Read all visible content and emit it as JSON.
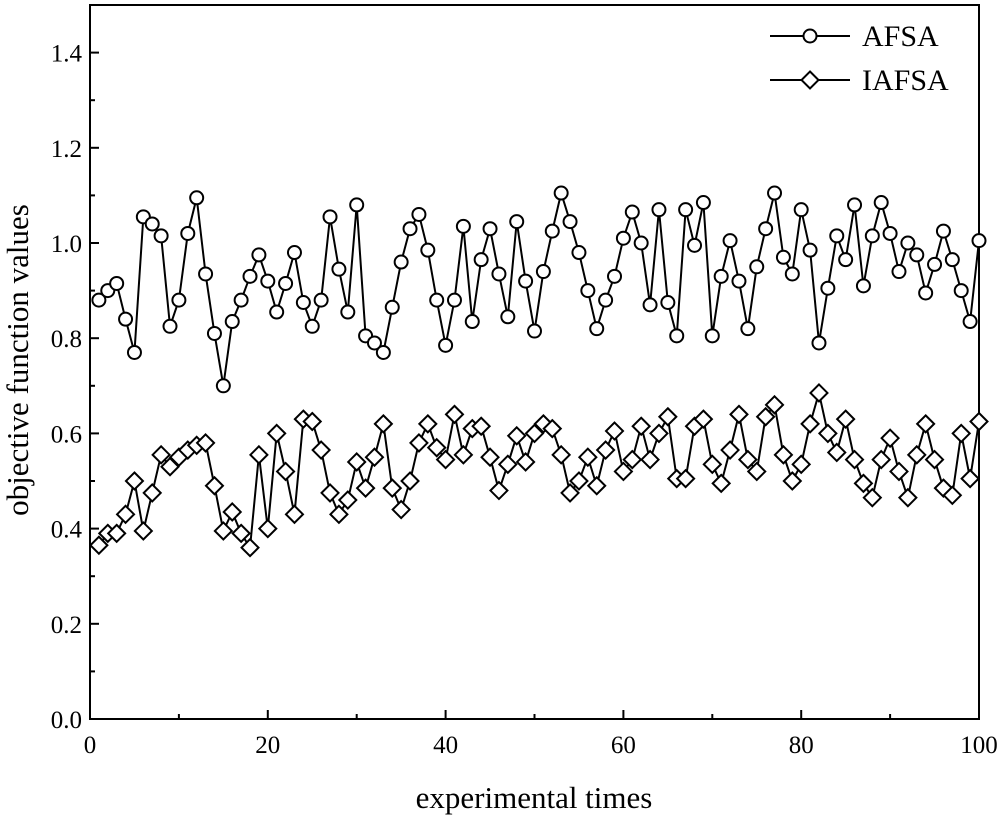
{
  "chart_data": {
    "type": "line",
    "title": "",
    "xlabel": "experimental times",
    "ylabel": "objective function values",
    "xlim": [
      0,
      100
    ],
    "ylim": [
      0,
      1.5
    ],
    "xticks": [
      0,
      20,
      40,
      60,
      80,
      100
    ],
    "xtick_labels": [
      "0",
      "20",
      "40",
      "60",
      "80",
      "100"
    ],
    "yticks": [
      0,
      0.2,
      0.4,
      0.6,
      0.8,
      1.0,
      1.2,
      1.4
    ],
    "ytick_labels": [
      "0.0",
      "0.2",
      "0.4",
      "0.6",
      "0.8",
      "1.0",
      "1.2",
      "1.4"
    ],
    "grid": false,
    "legend_position": "top-right",
    "x": [
      1,
      2,
      3,
      4,
      5,
      6,
      7,
      8,
      9,
      10,
      11,
      12,
      13,
      14,
      15,
      16,
      17,
      18,
      19,
      20,
      21,
      22,
      23,
      24,
      25,
      26,
      27,
      28,
      29,
      30,
      31,
      32,
      33,
      34,
      35,
      36,
      37,
      38,
      39,
      40,
      41,
      42,
      43,
      44,
      45,
      46,
      47,
      48,
      49,
      50,
      51,
      52,
      53,
      54,
      55,
      56,
      57,
      58,
      59,
      60,
      61,
      62,
      63,
      64,
      65,
      66,
      67,
      68,
      69,
      70,
      71,
      72,
      73,
      74,
      75,
      76,
      77,
      78,
      79,
      80,
      81,
      82,
      83,
      84,
      85,
      86,
      87,
      88,
      89,
      90,
      91,
      92,
      93,
      94,
      95,
      96,
      97,
      98,
      99,
      100
    ],
    "series": [
      {
        "name": "AFSA",
        "marker": "circle",
        "values": [
          0.88,
          0.9,
          0.915,
          0.84,
          0.77,
          1.055,
          1.04,
          1.015,
          0.825,
          0.88,
          1.02,
          1.095,
          0.935,
          0.81,
          0.7,
          0.835,
          0.88,
          0.93,
          0.975,
          0.92,
          0.855,
          0.915,
          0.98,
          0.875,
          0.825,
          0.88,
          1.055,
          0.945,
          0.855,
          1.08,
          0.805,
          0.79,
          0.77,
          0.865,
          0.96,
          1.03,
          1.06,
          0.985,
          0.88,
          0.785,
          0.88,
          1.035,
          0.835,
          0.965,
          1.03,
          0.935,
          0.845,
          1.045,
          0.92,
          0.815,
          0.94,
          1.025,
          1.105,
          1.045,
          0.98,
          0.9,
          0.82,
          0.88,
          0.93,
          1.01,
          1.065,
          1.0,
          0.87,
          1.07,
          0.875,
          0.805,
          1.07,
          0.995,
          1.085,
          0.805,
          0.93,
          1.005,
          0.92,
          0.82,
          0.95,
          1.03,
          1.105,
          0.97,
          0.935,
          1.07,
          0.985,
          0.79,
          0.905,
          1.015,
          0.965,
          1.08,
          0.91,
          1.015,
          1.085,
          1.02,
          0.94,
          1.0,
          0.975,
          0.895,
          0.955,
          1.025,
          0.965,
          0.9,
          0.835,
          1.005
        ]
      },
      {
        "name": "IAFSA",
        "marker": "diamond",
        "values": [
          0.365,
          0.39,
          0.39,
          0.43,
          0.5,
          0.395,
          0.475,
          0.555,
          0.53,
          0.55,
          0.565,
          0.575,
          0.58,
          0.49,
          0.395,
          0.435,
          0.39,
          0.36,
          0.555,
          0.4,
          0.6,
          0.52,
          0.43,
          0.63,
          0.625,
          0.565,
          0.475,
          0.43,
          0.46,
          0.54,
          0.485,
          0.55,
          0.62,
          0.485,
          0.44,
          0.5,
          0.58,
          0.62,
          0.57,
          0.545,
          0.64,
          0.555,
          0.61,
          0.615,
          0.55,
          0.48,
          0.535,
          0.595,
          0.54,
          0.6,
          0.62,
          0.61,
          0.555,
          0.475,
          0.5,
          0.55,
          0.49,
          0.565,
          0.605,
          0.52,
          0.545,
          0.615,
          0.545,
          0.6,
          0.635,
          0.505,
          0.505,
          0.615,
          0.63,
          0.535,
          0.495,
          0.565,
          0.64,
          0.545,
          0.52,
          0.635,
          0.66,
          0.555,
          0.5,
          0.535,
          0.62,
          0.685,
          0.6,
          0.56,
          0.63,
          0.545,
          0.495,
          0.465,
          0.545,
          0.59,
          0.52,
          0.465,
          0.555,
          0.62,
          0.545,
          0.485,
          0.47,
          0.6,
          0.505,
          0.625
        ]
      }
    ]
  }
}
